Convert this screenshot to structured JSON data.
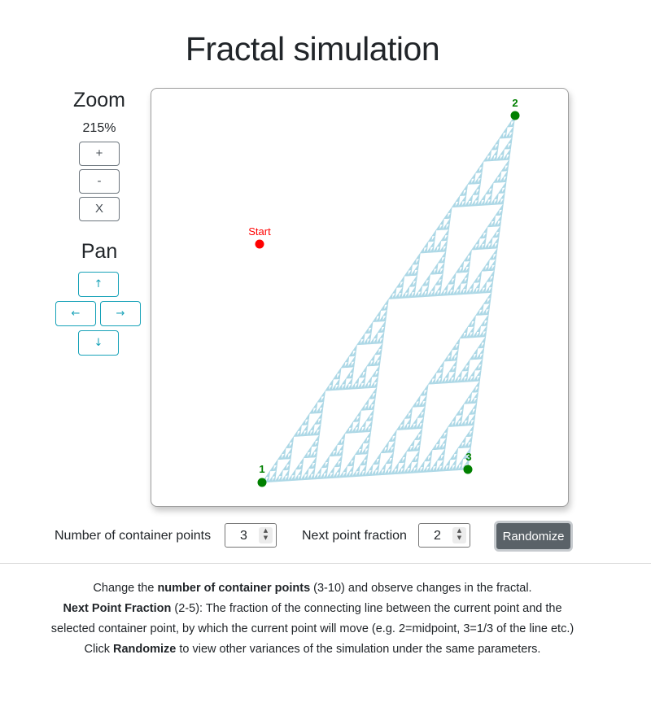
{
  "page": {
    "title": "Fractal simulation"
  },
  "zoom": {
    "heading": "Zoom",
    "value": "215%",
    "in_label": "+",
    "out_label": "-",
    "reset_label": "X"
  },
  "pan": {
    "heading": "Pan",
    "up_label": "↑",
    "left_label": "←",
    "right_label": "→",
    "down_label": "↓"
  },
  "canvas": {
    "start_label": "Start",
    "point_labels": [
      "1",
      "2",
      "3"
    ],
    "colors": {
      "fractal": "#add8e6",
      "container_point": "#008000",
      "start_point": "#ff0000",
      "start_label": "#ff0000"
    }
  },
  "controls": {
    "container_points_label": "Number of container points",
    "container_points_value": "3",
    "fraction_label": "Next point fraction",
    "fraction_value": "2",
    "randomize_label": "Randomize",
    "colors": {
      "randomize_bg": "#5a6268",
      "pan_accent": "#17a2b8"
    }
  },
  "instructions": {
    "line1": {
      "pre": "Change the ",
      "bold": "number of container points",
      "post": " (3-10) and observe changes in the fractal."
    },
    "line2": {
      "bold": "Next Point Fraction",
      "post": " (2-5): The fraction of the connecting line between the current point and the"
    },
    "line3": "selected container point, by which the current point will move (e.g. 2=midpoint, 3=1/3 of the line etc.)",
    "line4": {
      "pre": "Click ",
      "bold": "Randomize",
      "post": " to view other variances of the simulation under the same parameters."
    }
  }
}
